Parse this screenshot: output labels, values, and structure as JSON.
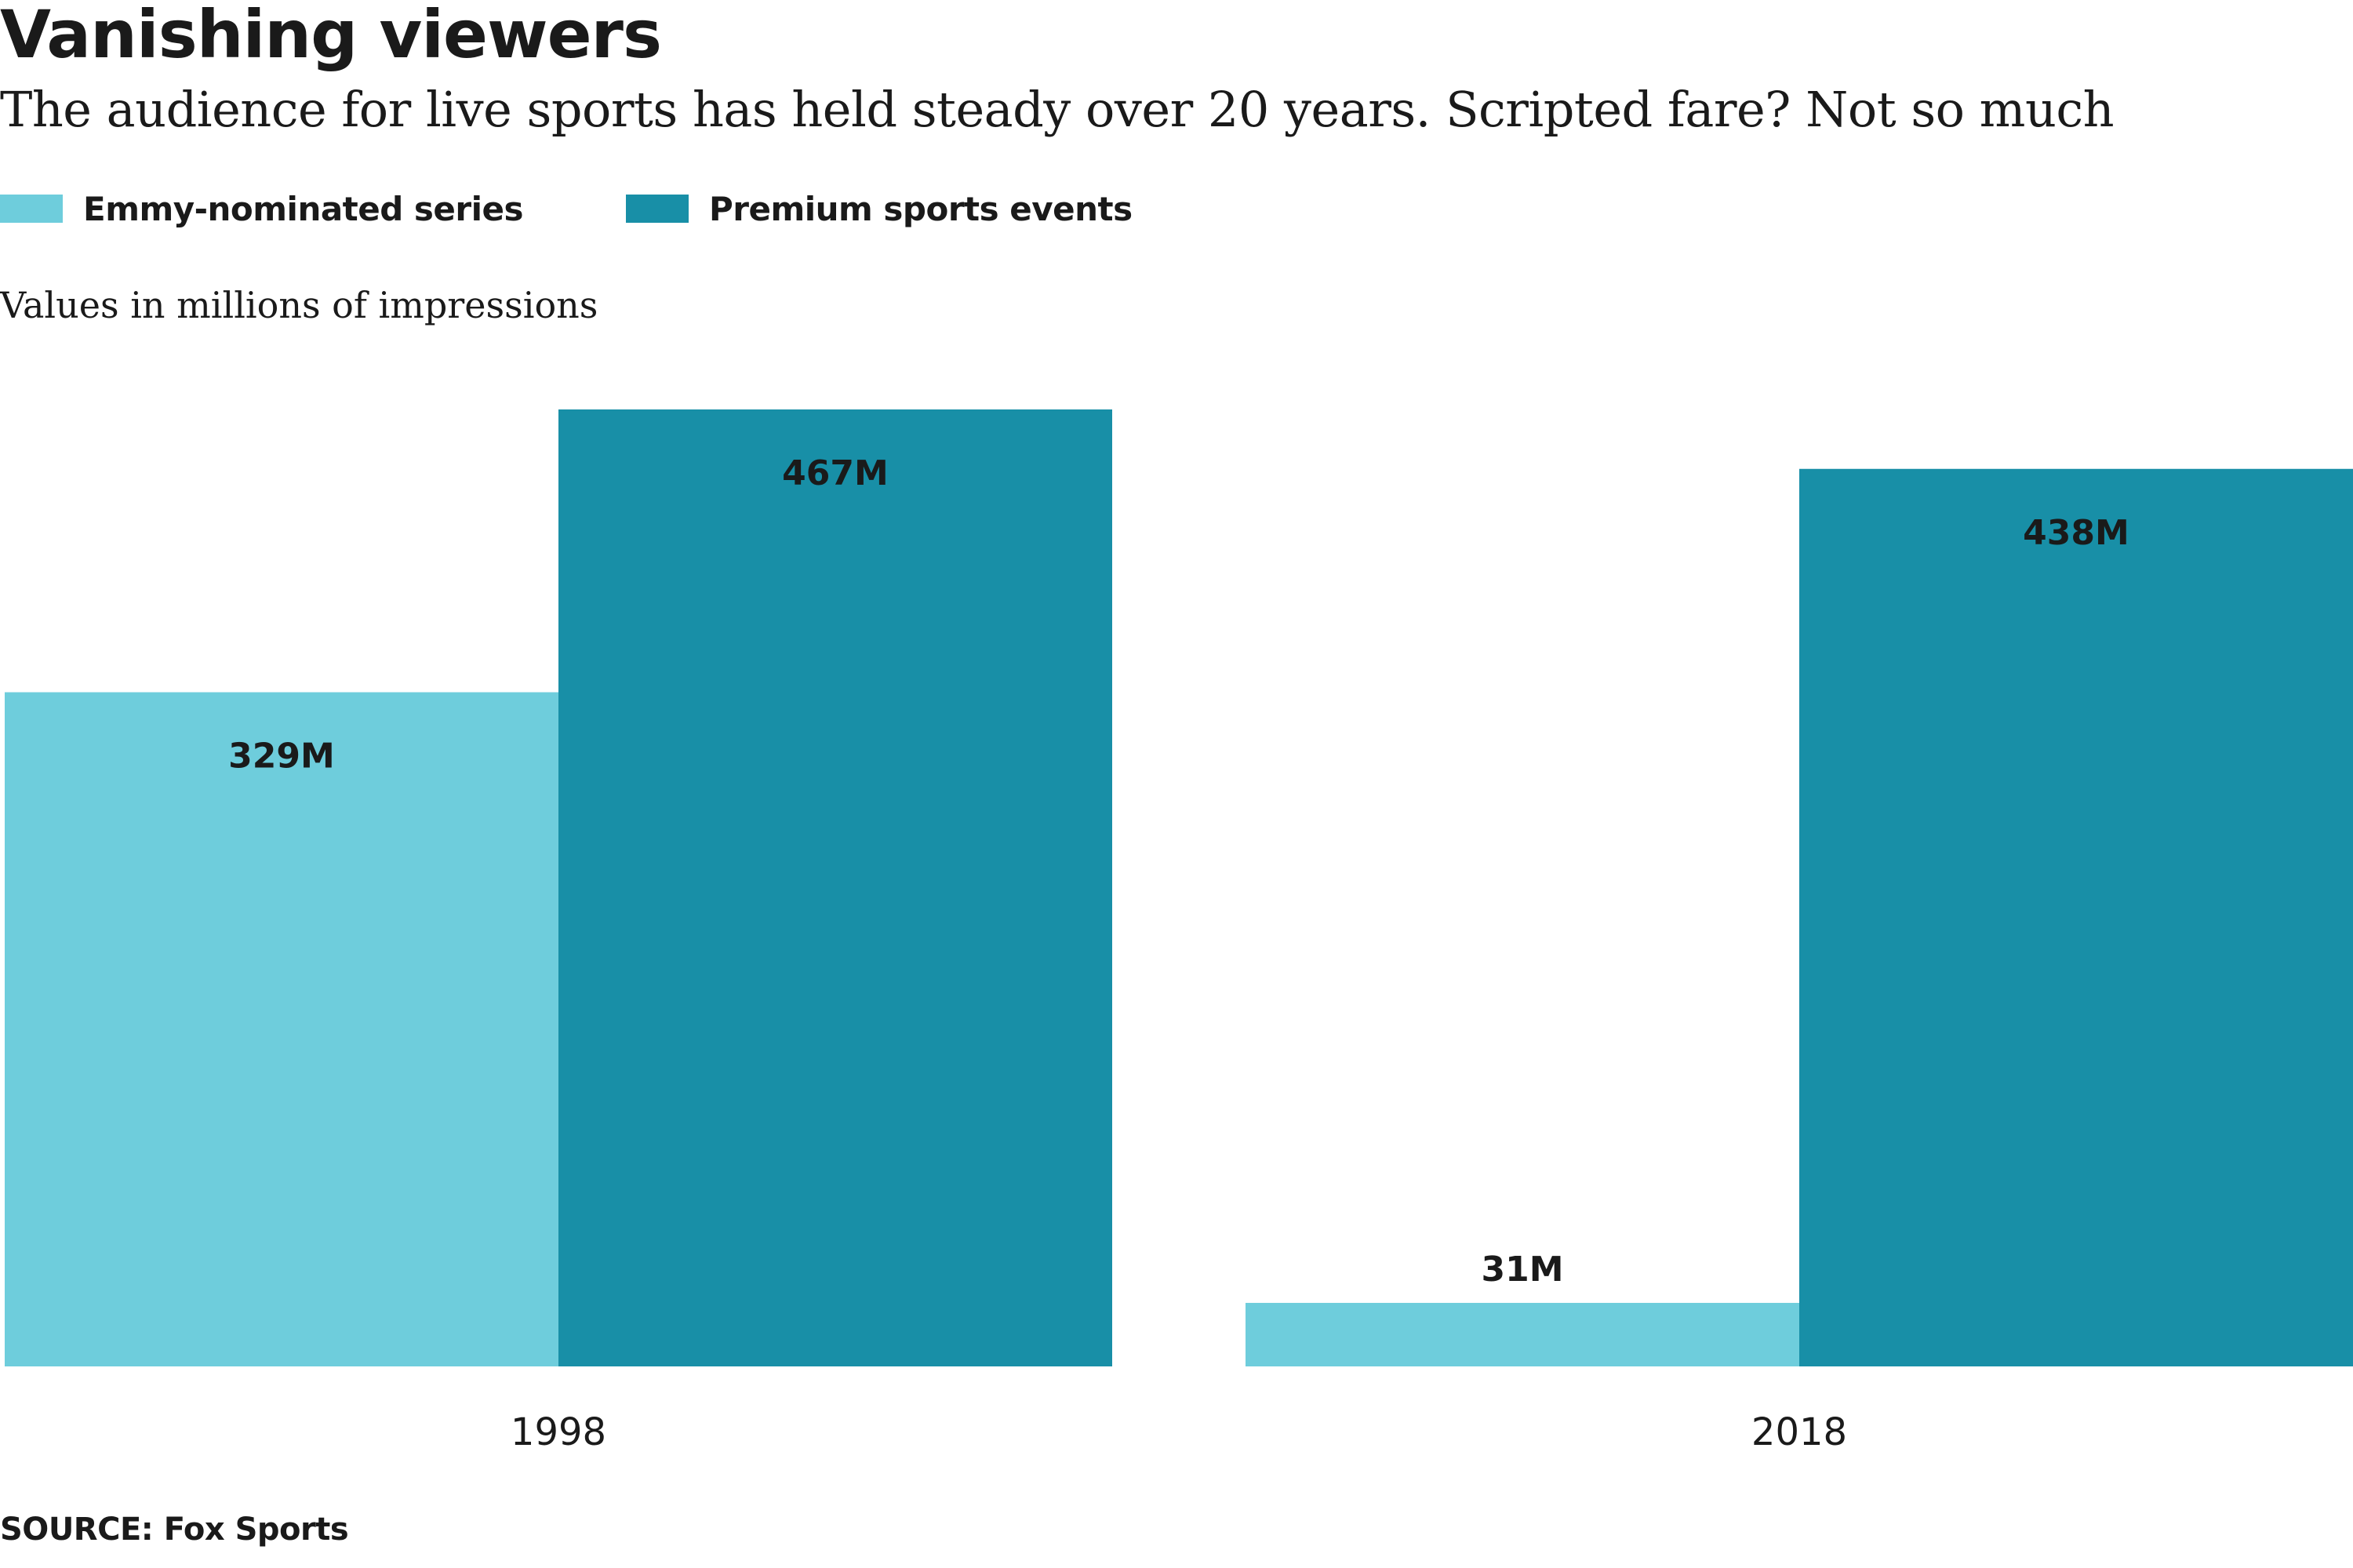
{
  "header": {
    "title": "Vanishing viewers",
    "subtitle": "The audience for live sports has held steady over 20 years. Scripted fare? Not so much"
  },
  "legend": [
    {
      "label": "Emmy-nominated series",
      "color": "#6ecddc"
    },
    {
      "label": "Premium sports events",
      "color": "#188fa7"
    }
  ],
  "units_note": "Values in millions of impressions",
  "source": "SOURCE: Fox Sports",
  "chart_data": {
    "type": "bar",
    "categories": [
      "1998",
      "2018"
    ],
    "series": [
      {
        "name": "Emmy-nominated series",
        "values": [
          329,
          31
        ],
        "labels": [
          "329M",
          "31M"
        ],
        "color": "#6ecddc"
      },
      {
        "name": "Premium sports events",
        "values": [
          467,
          438
        ],
        "labels": [
          "467M",
          "438M"
        ],
        "color": "#188fa7"
      }
    ],
    "ylim": [
      0,
      467
    ],
    "grid": false,
    "legend_position": "top-left",
    "label_color": "#1a1a1a"
  }
}
